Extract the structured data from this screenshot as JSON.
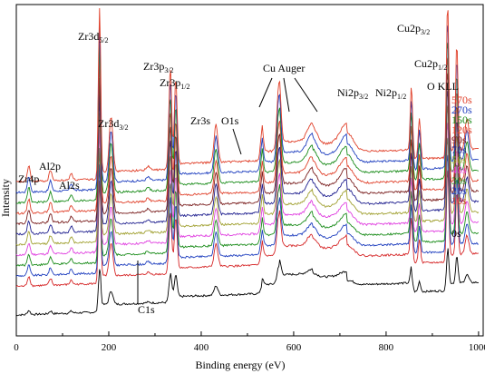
{
  "chart_data": {
    "type": "line",
    "xlabel": "Binding energy (eV)",
    "ylabel": "Intensity",
    "xlim": [
      0,
      1010
    ],
    "x_ticks": [
      "0",
      "200",
      "400",
      "600",
      "800",
      "1000"
    ],
    "y_ticks": [],
    "grid": false,
    "legend_placement": "right (labels stacked at end of each trace)",
    "series": [
      {
        "name": "0s",
        "color": "#000000",
        "offset": 0,
        "peak_scale": 0.25
      },
      {
        "name": "10s",
        "color": "#d62728",
        "offset": 1,
        "peak_scale": 1.0
      },
      {
        "name": "20s",
        "color": "#1f3fbf",
        "offset": 2,
        "peak_scale": 1.0
      },
      {
        "name": "30s",
        "color": "#1a8c1a",
        "offset": 3,
        "peak_scale": 1.0
      },
      {
        "name": "40s",
        "color": "#e040e0",
        "offset": 4,
        "peak_scale": 1.0
      },
      {
        "name": "50s",
        "color": "#a0a030",
        "offset": 5,
        "peak_scale": 1.0
      },
      {
        "name": "70s",
        "color": "#1f1f8f",
        "offset": 6,
        "peak_scale": 1.0
      },
      {
        "name": "90s",
        "color": "#7a1f1f",
        "offset": 7,
        "peak_scale": 1.0
      },
      {
        "name": "120s",
        "color": "#e0402a",
        "offset": 8,
        "peak_scale": 1.0
      },
      {
        "name": "150s",
        "color": "#1a8c1a",
        "offset": 9,
        "peak_scale": 1.0
      },
      {
        "name": "270s",
        "color": "#1f3fbf",
        "offset": 10,
        "peak_scale": 1.0
      },
      {
        "name": "570s",
        "color": "#e0402a",
        "offset": 11,
        "peak_scale": 1.0
      }
    ],
    "peaks": [
      {
        "label": "Zr4p",
        "x": 27
      },
      {
        "label": "Al2p",
        "x": 74
      },
      {
        "label": "Al2s",
        "x": 119
      },
      {
        "label": "Zr3d5/2",
        "x": 180
      },
      {
        "label": "Zr3d3/2",
        "x": 205
      },
      {
        "label": "C1s",
        "x": 285
      },
      {
        "label": "Zr3p3/2",
        "x": 333
      },
      {
        "label": "Zr3p1/2",
        "x": 345
      },
      {
        "label": "Zr3s",
        "x": 432
      },
      {
        "label": "O1s",
        "x": 531
      },
      {
        "label": "Cu Auger",
        "x": [
          568,
          640,
          715
        ]
      },
      {
        "label": "Ni2p3/2",
        "x": 855
      },
      {
        "label": "Ni2p1/2",
        "x": 872
      },
      {
        "label": "Cu2p3/2",
        "x": 933
      },
      {
        "label": "Cu2p1/2",
        "x": 953
      },
      {
        "label": "O KLL",
        "x": 975
      }
    ],
    "annotations": {
      "zr4p": {
        "main": "Zr4p"
      },
      "al2p": {
        "main": "Al2p"
      },
      "al2s": {
        "main": "Al2s"
      },
      "zr3d52": {
        "main": "Zr3d",
        "sub": "5/2"
      },
      "zr3d32": {
        "main": "Zr3d",
        "sub": "3/2"
      },
      "c1s": {
        "main": "C1s"
      },
      "zr3p32": {
        "main": "Zr3p",
        "sub": "3/2"
      },
      "zr3p12": {
        "main": "Zr3p",
        "sub": "1/2"
      },
      "zr3s": {
        "main": "Zr3s"
      },
      "o1s": {
        "main": "O1s"
      },
      "cuauger": {
        "main": "Cu Auger"
      },
      "ni2p32": {
        "main": "Ni2p",
        "sub": "3/2"
      },
      "ni2p12": {
        "main": "Ni2p",
        "sub": "1/2"
      },
      "cu2p32": {
        "main": "Cu2p",
        "sub": "3/2"
      },
      "cu2p12": {
        "main": "Cu2p",
        "sub": "1/2"
      },
      "okll": {
        "main": "O KLL"
      }
    }
  }
}
